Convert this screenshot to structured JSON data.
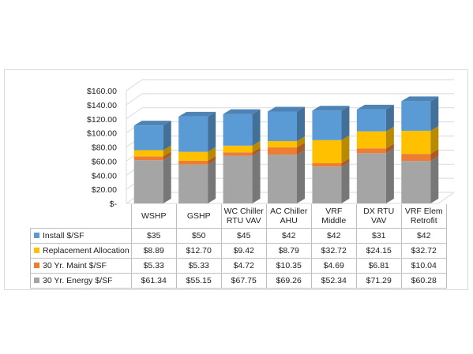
{
  "chart_data": {
    "type": "bar",
    "stacked": true,
    "three_d": true,
    "categories": [
      "WSHP",
      "GSHP",
      "WC Chiller RTU VAV",
      "AC Chiller AHU",
      "VRF Middle",
      "DX RTU VAV",
      "VRF Elem Retrofit"
    ],
    "series": [
      {
        "name": "30 Yr. Energy $/SF",
        "color": "#a5a5a5",
        "values": [
          61.34,
          55.15,
          67.75,
          69.26,
          52.34,
          71.29,
          60.28
        ],
        "labels": [
          "$61.34",
          "$55.15",
          "$67.75",
          "$69.26",
          "$52.34",
          "$71.29",
          "$60.28"
        ]
      },
      {
        "name": "30 Yr. Maint $/SF",
        "color": "#ed7d31",
        "values": [
          5.33,
          5.33,
          4.72,
          10.35,
          4.69,
          6.81,
          10.04
        ],
        "labels": [
          "$5.33",
          "$5.33",
          "$4.72",
          "$10.35",
          "$4.69",
          "$6.81",
          "$10.04"
        ]
      },
      {
        "name": "Replacement Allocation",
        "color": "#ffc000",
        "values": [
          8.89,
          12.7,
          9.42,
          8.79,
          32.72,
          24.15,
          32.72
        ],
        "labels": [
          "$8.89",
          "$12.70",
          "$9.42",
          "$8.79",
          "$32.72",
          "$24.15",
          "$32.72"
        ]
      },
      {
        "name": "Install $/SF",
        "color": "#5b9bd5",
        "values": [
          35,
          50,
          45,
          42,
          42,
          31,
          42
        ],
        "labels": [
          "$35",
          "$50",
          "$45",
          "$42",
          "$42",
          "$31",
          "$42"
        ]
      }
    ],
    "ylim": [
      0,
      160
    ],
    "yticks": [
      0,
      20,
      40,
      60,
      80,
      100,
      120,
      140,
      160
    ],
    "ytick_labels": [
      "$-",
      "$20.00",
      "$40.00",
      "$60.00",
      "$80.00",
      "$100.00",
      "$120.00",
      "$140.00",
      "$160.00"
    ],
    "grid": true,
    "legend": "data-table"
  },
  "table": {
    "row_order": [
      3,
      2,
      1,
      0
    ]
  }
}
